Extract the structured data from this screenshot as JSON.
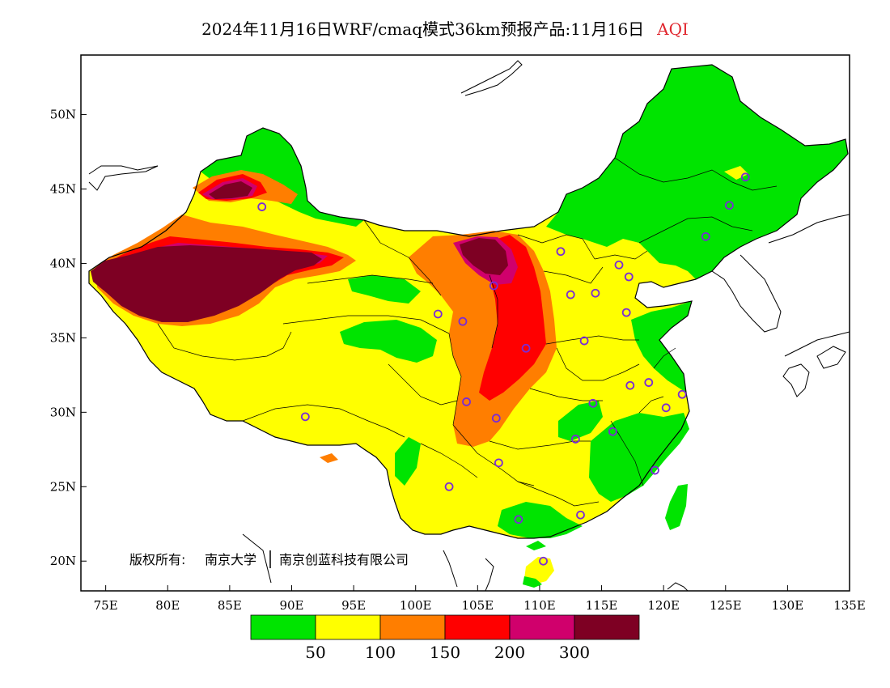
{
  "title": {
    "text": "2024年11月16日WRF/cmaq模式36km预报产品:11月16日",
    "variable": "AQI",
    "variable_color": "#e0262e"
  },
  "chart_data": {
    "type": "heatmap",
    "x_ticks": [
      "75E",
      "80E",
      "85E",
      "90E",
      "95E",
      "100E",
      "105E",
      "110E",
      "115E",
      "120E",
      "125E",
      "130E",
      "135E"
    ],
    "y_ticks": [
      "50N",
      "45N",
      "40N",
      "35N",
      "30N",
      "25N",
      "20N"
    ],
    "xlim": [
      73,
      135
    ],
    "ylim": [
      18,
      54
    ],
    "grid": false,
    "legend": {
      "position": "bottom",
      "colors": [
        "#00e400",
        "#ffff00",
        "#ff7e00",
        "#ff0000",
        "#d0006c",
        "#7e0023"
      ],
      "labels": [
        "50",
        "100",
        "150",
        "200",
        "300"
      ]
    },
    "stations": [
      [
        87.6,
        43.8
      ],
      [
        126.6,
        45.8
      ],
      [
        125.3,
        43.9
      ],
      [
        123.4,
        41.8
      ],
      [
        111.7,
        40.8
      ],
      [
        116.4,
        39.9
      ],
      [
        117.2,
        39.1
      ],
      [
        114.5,
        38.0
      ],
      [
        112.5,
        37.9
      ],
      [
        106.3,
        38.5
      ],
      [
        101.8,
        36.6
      ],
      [
        103.8,
        36.1
      ],
      [
        108.9,
        34.3
      ],
      [
        113.6,
        34.8
      ],
      [
        117.0,
        36.7
      ],
      [
        118.8,
        32.0
      ],
      [
        117.3,
        31.8
      ],
      [
        120.2,
        30.3
      ],
      [
        121.5,
        31.2
      ],
      [
        114.3,
        30.6
      ],
      [
        112.9,
        28.2
      ],
      [
        115.9,
        28.7
      ],
      [
        119.3,
        26.1
      ],
      [
        106.5,
        29.6
      ],
      [
        104.1,
        30.7
      ],
      [
        106.7,
        26.6
      ],
      [
        102.7,
        25.0
      ],
      [
        108.3,
        22.8
      ],
      [
        113.3,
        23.1
      ],
      [
        110.3,
        20.0
      ],
      [
        91.1,
        29.7
      ]
    ]
  },
  "copyright": {
    "owner_prefix": "版权所有:",
    "owner_1": "南京大学",
    "owner_2": "南京创蓝科技有限公司"
  }
}
